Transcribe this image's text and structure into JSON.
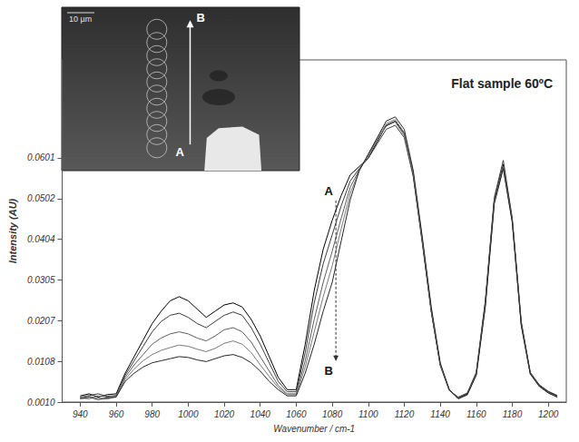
{
  "chart_data": {
    "type": "line",
    "title": "Flat sample 60ºC",
    "x_label": "Wavenumber / cm-1",
    "y_label": "Intensity (AU)",
    "xlim": [
      930,
      1210
    ],
    "xticks": [
      940,
      960,
      980,
      1000,
      1020,
      1040,
      1060,
      1080,
      1100,
      1120,
      1140,
      1160,
      1180,
      1200
    ],
    "ylim": [
      0.001,
      0.0838
    ],
    "yticks": [
      {
        "value": 0.001,
        "label": "0.0010"
      },
      0.0108,
      0.0207,
      0.0305,
      0.0404,
      0.0502,
      0.0601
    ],
    "grid": false,
    "x": [
      940,
      945,
      950,
      955,
      960,
      965,
      970,
      975,
      980,
      985,
      990,
      995,
      1000,
      1005,
      1010,
      1015,
      1020,
      1025,
      1030,
      1035,
      1040,
      1045,
      1050,
      1055,
      1060,
      1065,
      1070,
      1075,
      1080,
      1085,
      1090,
      1095,
      1100,
      1105,
      1110,
      1115,
      1120,
      1125,
      1130,
      1135,
      1140,
      1145,
      1150,
      1155,
      1160,
      1165,
      1170,
      1175,
      1180,
      1185,
      1190,
      1195,
      1200,
      1205
    ],
    "series": [
      {
        "color": "#000000",
        "values": [
          0.0025,
          0.003,
          0.0022,
          0.0028,
          0.003,
          0.008,
          0.012,
          0.016,
          0.02,
          0.023,
          0.0255,
          0.0265,
          0.0255,
          0.0235,
          0.0215,
          0.023,
          0.0245,
          0.025,
          0.024,
          0.021,
          0.017,
          0.012,
          0.007,
          0.004,
          0.004,
          0.015,
          0.028,
          0.038,
          0.045,
          0.051,
          0.056,
          0.058,
          0.06,
          0.064,
          0.068,
          0.069,
          0.066,
          0.056,
          0.04,
          0.023,
          0.01,
          0.004,
          0.002,
          0.003,
          0.008,
          0.025,
          0.05,
          0.0585,
          0.045,
          0.02,
          0.008,
          0.005,
          0.0035,
          0.0025
        ]
      },
      {
        "color": "#3c3c3c",
        "values": [
          0.0022,
          0.0026,
          0.003,
          0.0024,
          0.0026,
          0.0075,
          0.011,
          0.0145,
          0.018,
          0.0205,
          0.022,
          0.0225,
          0.0215,
          0.02,
          0.019,
          0.0205,
          0.022,
          0.0228,
          0.022,
          0.019,
          0.015,
          0.0105,
          0.006,
          0.0035,
          0.0035,
          0.013,
          0.025,
          0.0345,
          0.0415,
          0.0485,
          0.0545,
          0.0575,
          0.06,
          0.0635,
          0.067,
          0.068,
          0.065,
          0.0555,
          0.0395,
          0.0228,
          0.0098,
          0.0038,
          0.0022,
          0.0032,
          0.0082,
          0.0255,
          0.0505,
          0.0595,
          0.0455,
          0.0205,
          0.0082,
          0.0052,
          0.0036,
          0.0026
        ]
      },
      {
        "color": "#5e5e5e",
        "values": [
          0.002,
          0.0018,
          0.0025,
          0.0022,
          0.0024,
          0.007,
          0.01,
          0.0125,
          0.015,
          0.0165,
          0.0175,
          0.018,
          0.0175,
          0.0165,
          0.0158,
          0.017,
          0.0185,
          0.019,
          0.018,
          0.0155,
          0.012,
          0.0085,
          0.005,
          0.003,
          0.003,
          0.011,
          0.021,
          0.03,
          0.0375,
          0.0455,
          0.053,
          0.0572,
          0.0605,
          0.0645,
          0.0678,
          0.0688,
          0.0655,
          0.056,
          0.04,
          0.0232,
          0.01,
          0.0039,
          0.0019,
          0.0029,
          0.0078,
          0.0245,
          0.0495,
          0.058,
          0.0448,
          0.0198,
          0.0079,
          0.0049,
          0.0033,
          0.0023
        ]
      },
      {
        "color": "#7a7a7a",
        "values": [
          0.0019,
          0.0024,
          0.002,
          0.0017,
          0.0023,
          0.0065,
          0.009,
          0.011,
          0.0125,
          0.0135,
          0.0142,
          0.0148,
          0.0145,
          0.0138,
          0.0132,
          0.014,
          0.0152,
          0.0158,
          0.015,
          0.013,
          0.01,
          0.0072,
          0.0045,
          0.0028,
          0.0028,
          0.0095,
          0.018,
          0.0265,
          0.034,
          0.043,
          0.0515,
          0.057,
          0.0608,
          0.0648,
          0.0684,
          0.0694,
          0.0662,
          0.0565,
          0.0405,
          0.0236,
          0.0102,
          0.004,
          0.0018,
          0.0027,
          0.0076,
          0.0242,
          0.0492,
          0.0577,
          0.0446,
          0.0196,
          0.0078,
          0.0048,
          0.0032,
          0.0022
        ]
      },
      {
        "color": "#262626",
        "values": [
          0.0018,
          0.0022,
          0.0016,
          0.002,
          0.0022,
          0.006,
          0.008,
          0.0095,
          0.0105,
          0.011,
          0.0115,
          0.012,
          0.0118,
          0.0112,
          0.0108,
          0.0115,
          0.0122,
          0.0125,
          0.0118,
          0.0105,
          0.0085,
          0.006,
          0.004,
          0.0025,
          0.0025,
          0.008,
          0.015,
          0.023,
          0.03,
          0.04,
          0.05,
          0.057,
          0.061,
          0.065,
          0.069,
          0.07,
          0.067,
          0.057,
          0.041,
          0.024,
          0.0105,
          0.004,
          0.0018,
          0.0028,
          0.0075,
          0.024,
          0.049,
          0.0575,
          0.0445,
          0.0195,
          0.0078,
          0.0048,
          0.0032,
          0.0022
        ]
      }
    ],
    "annotations": [
      {
        "text": "A",
        "x": 1078,
        "y": 0.052
      },
      {
        "text": "B",
        "x": 1078,
        "y": 0.0085
      }
    ],
    "inset": {
      "scale_label": "10 µm",
      "arrow_start": "A",
      "arrow_end": "B"
    }
  }
}
